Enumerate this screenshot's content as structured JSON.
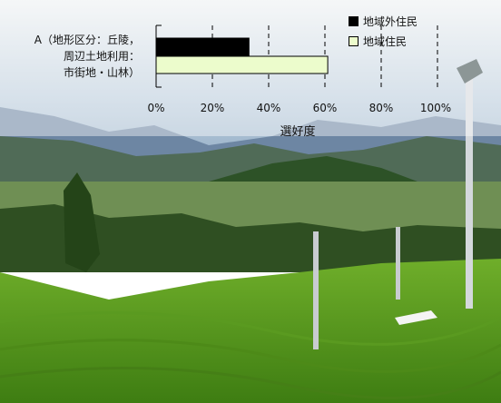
{
  "chart_data": {
    "type": "bar",
    "orientation": "horizontal",
    "category_label_lines": [
      "A（地形区分：丘陵，",
      "周辺土地利用：",
      "市街地・山林）"
    ],
    "series": [
      {
        "name": "地域外住民",
        "color": "#000000",
        "values": [
          33
        ]
      },
      {
        "name": "地域住民",
        "color": "#ecfccc",
        "values": [
          61
        ]
      }
    ],
    "xlabel": "選好度",
    "x_ticks": [
      "0%",
      "20%",
      "40%",
      "60%",
      "80%",
      "100%"
    ],
    "xlim": [
      0,
      100
    ],
    "grid": "vertical dashed",
    "legend_position": "top-right"
  }
}
